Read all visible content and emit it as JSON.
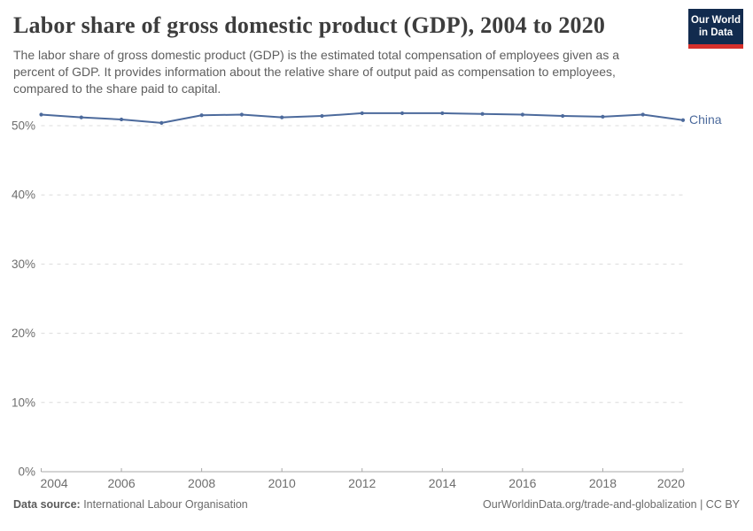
{
  "header": {
    "title": "Labor share of gross domestic product (GDP), 2004 to 2020",
    "subtitle": "The labor share of gross domestic product (GDP) is the estimated total compensation of employees given as a percent of GDP. It provides information about the relative share of output paid as compensation to employees, compared to the share paid to capital."
  },
  "logo": {
    "line1": "Our World",
    "line2": "in Data",
    "background_color": "#122b4e",
    "stripe_color": "#d6302b"
  },
  "chart_data": {
    "type": "line",
    "title": "Labor share of gross domestic product (GDP), 2004 to 2020",
    "xlabel": "",
    "ylabel": "",
    "xlim": [
      2004,
      2020
    ],
    "ylim": [
      0,
      52.5
    ],
    "grid": "horizontal-dashed",
    "legend_position": "end-of-line-label",
    "x_axis": {
      "ticks": [
        2004,
        2006,
        2008,
        2010,
        2012,
        2014,
        2016,
        2018,
        2020
      ]
    },
    "y_axis": {
      "ticks": [
        0,
        10,
        20,
        30,
        40,
        50
      ],
      "suffix": "%"
    },
    "x": [
      2004,
      2005,
      2006,
      2007,
      2008,
      2009,
      2010,
      2011,
      2012,
      2013,
      2014,
      2015,
      2016,
      2017,
      2018,
      2019,
      2020
    ],
    "series": [
      {
        "name": "China",
        "color": "#4C6A9C",
        "values": [
          51.6,
          51.2,
          50.9,
          50.4,
          51.5,
          51.6,
          51.2,
          51.4,
          51.8,
          51.8,
          51.8,
          51.7,
          51.6,
          51.4,
          51.3,
          51.6,
          50.8
        ]
      }
    ],
    "colors": {
      "gridline": "#dcdcdc",
      "axis_line": "#a8a8a8",
      "tick_label": "#6e6e6e"
    }
  },
  "footer": {
    "source_label": "Data source:",
    "source_value": " International Labour Organisation",
    "right_text": "OurWorldinData.org/trade-and-globalization | CC BY"
  }
}
